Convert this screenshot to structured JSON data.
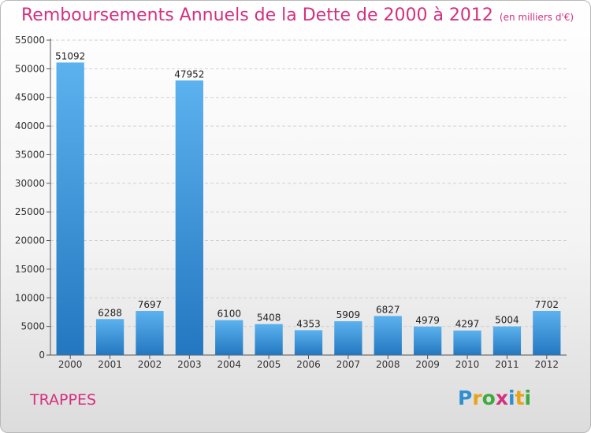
{
  "header": {
    "title": "Remboursements Annuels de la Dette de 2000 à 2012",
    "subtitle": "(en milliers d'€)"
  },
  "footer": {
    "commune": "TRAPPES",
    "logo_text": "Proxiti",
    "logo_letters": [
      {
        "ch": "P",
        "color": "#2f8fd0"
      },
      {
        "ch": "r",
        "color": "#e8a317"
      },
      {
        "ch": "o",
        "color": "#3faa3f"
      },
      {
        "ch": "x",
        "color": "#d4307f"
      },
      {
        "ch": "i",
        "color": "#2f8fd0"
      },
      {
        "ch": "t",
        "color": "#e8a317"
      },
      {
        "ch": "i",
        "color": "#3faa3f"
      }
    ]
  },
  "chart_data": {
    "type": "bar",
    "title": "Remboursements Annuels de la Dette de 2000 à 2012",
    "subtitle": "(en milliers d'€)",
    "categories": [
      "2000",
      "2001",
      "2002",
      "2003",
      "2004",
      "2005",
      "2006",
      "2007",
      "2008",
      "2009",
      "2010",
      "2011",
      "2012"
    ],
    "values": [
      51092,
      6288,
      7697,
      47952,
      6100,
      5408,
      4353,
      5909,
      6827,
      4979,
      4297,
      5004,
      7702
    ],
    "ylim": [
      0,
      55000
    ],
    "yticks": [
      0,
      5000,
      10000,
      15000,
      20000,
      25000,
      30000,
      35000,
      40000,
      45000,
      50000,
      55000
    ],
    "grid": true,
    "bar_color": "#3a8fd4",
    "xlabel": "",
    "ylabel": ""
  }
}
